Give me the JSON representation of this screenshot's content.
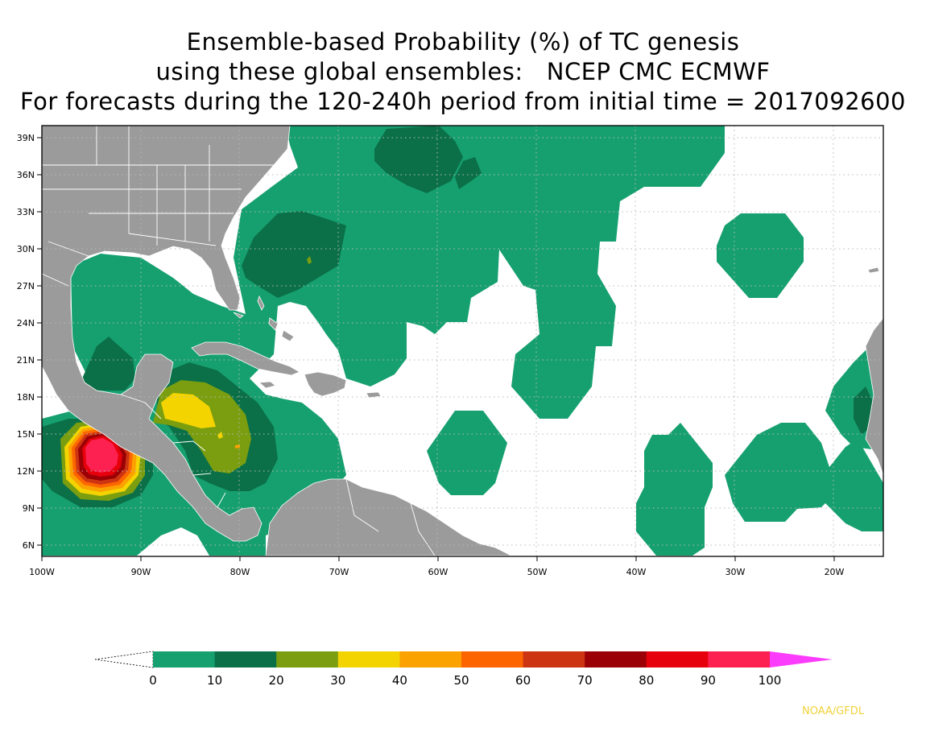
{
  "title": {
    "line1": "Ensemble-based Probability (%) of TC genesis",
    "line2": "using these global ensembles:   NCEP CMC ECMWF",
    "line3": "For forecasts during the 120-240h period from initial time = 2017092600"
  },
  "map": {
    "lon_labels": [
      "100W",
      "90W",
      "80W",
      "70W",
      "60W",
      "50W",
      "40W",
      "30W",
      "20W"
    ],
    "lat_labels": [
      "39N",
      "36N",
      "33N",
      "30N",
      "27N",
      "24N",
      "21N",
      "18N",
      "15N",
      "12N",
      "9N",
      "6N"
    ],
    "lon_range": [
      -100,
      -15
    ],
    "lat_range": [
      5,
      40
    ],
    "colors": {
      "land": "#9b9b9b",
      "ocean": "#ffffff",
      "border": "#ffffff",
      "grid": "#b8b8b8"
    }
  },
  "legend": {
    "labels": [
      "0",
      "10",
      "20",
      "30",
      "40",
      "50",
      "60",
      "70",
      "80",
      "90",
      "100"
    ],
    "colors": [
      "#16a070",
      "#0b7048",
      "#7a9e10",
      "#f3d400",
      "#fba200",
      "#fc6500",
      "#cd3412",
      "#9b0006",
      "#e6000c",
      "#fc2150",
      "#fc3cfc"
    ]
  },
  "credit": "NOAA/GFDL"
}
